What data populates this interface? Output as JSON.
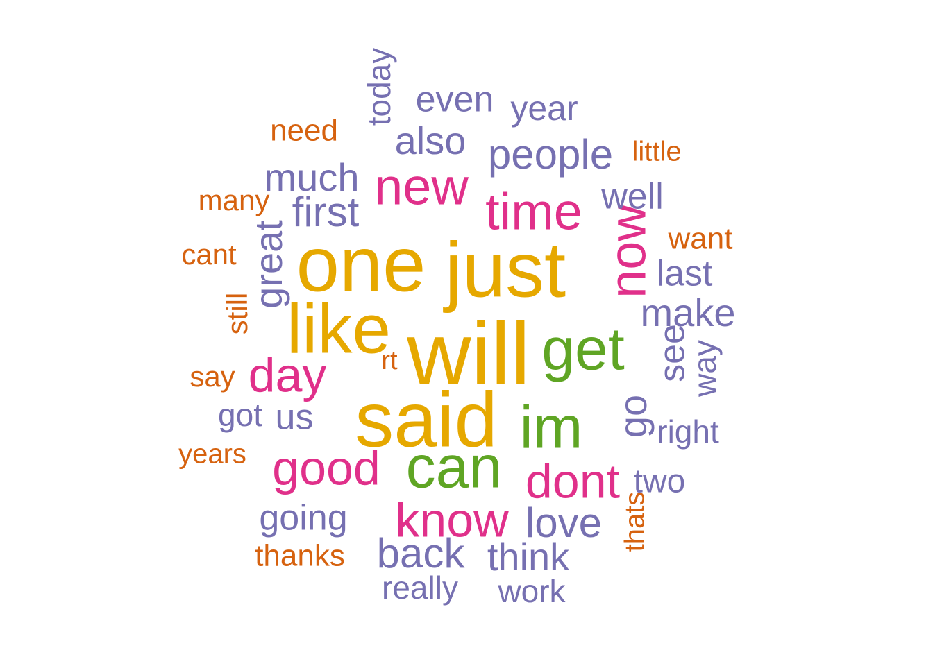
{
  "colors": {
    "gold": "#E6A800",
    "green": "#5FA524",
    "magenta": "#E0308A",
    "purple": "#7670B1",
    "orange": "#D6620F"
  },
  "words": [
    {
      "text": "will",
      "color": "gold",
      "rank": 1
    },
    {
      "text": "said",
      "color": "gold",
      "rank": 2
    },
    {
      "text": "one",
      "color": "gold",
      "rank": 3
    },
    {
      "text": "just",
      "color": "gold",
      "rank": 4
    },
    {
      "text": "like",
      "color": "gold",
      "rank": 5
    },
    {
      "text": "get",
      "color": "green",
      "rank": 6
    },
    {
      "text": "can",
      "color": "green",
      "rank": 7
    },
    {
      "text": "im",
      "color": "green",
      "rank": 8
    },
    {
      "text": "new",
      "color": "magenta",
      "rank": 9
    },
    {
      "text": "time",
      "color": "magenta",
      "rank": 10
    },
    {
      "text": "now",
      "color": "magenta",
      "rank": 11
    },
    {
      "text": "day",
      "color": "magenta",
      "rank": 12
    },
    {
      "text": "good",
      "color": "magenta",
      "rank": 13
    },
    {
      "text": "dont",
      "color": "magenta",
      "rank": 14
    },
    {
      "text": "know",
      "color": "magenta",
      "rank": 15
    },
    {
      "text": "people",
      "color": "purple",
      "rank": 16
    },
    {
      "text": "back",
      "color": "purple",
      "rank": 17
    },
    {
      "text": "love",
      "color": "purple",
      "rank": 18
    },
    {
      "text": "first",
      "color": "purple",
      "rank": 19
    },
    {
      "text": "make",
      "color": "purple",
      "rank": 20
    },
    {
      "text": "go",
      "color": "purple",
      "rank": 21
    },
    {
      "text": "much",
      "color": "purple",
      "rank": 22
    },
    {
      "text": "also",
      "color": "purple",
      "rank": 23
    },
    {
      "text": "think",
      "color": "purple",
      "rank": 24
    },
    {
      "text": "great",
      "color": "purple",
      "rank": 25
    },
    {
      "text": "see",
      "color": "purple",
      "rank": 26
    },
    {
      "text": "last",
      "color": "purple",
      "rank": 27
    },
    {
      "text": "even",
      "color": "purple",
      "rank": 28
    },
    {
      "text": "going",
      "color": "purple",
      "rank": 29
    },
    {
      "text": "well",
      "color": "purple",
      "rank": 30
    },
    {
      "text": "us",
      "color": "purple",
      "rank": 31
    },
    {
      "text": "year",
      "color": "purple",
      "rank": 32
    },
    {
      "text": "today",
      "color": "purple",
      "rank": 33
    },
    {
      "text": "two",
      "color": "purple",
      "rank": 34
    },
    {
      "text": "really",
      "color": "purple",
      "rank": 35
    },
    {
      "text": "work",
      "color": "purple",
      "rank": 36
    },
    {
      "text": "right",
      "color": "purple",
      "rank": 37
    },
    {
      "text": "got",
      "color": "purple",
      "rank": 38
    },
    {
      "text": "way",
      "color": "purple",
      "rank": 39
    },
    {
      "text": "want",
      "color": "orange",
      "rank": 40
    },
    {
      "text": "need",
      "color": "orange",
      "rank": 41
    },
    {
      "text": "thanks",
      "color": "orange",
      "rank": 42
    },
    {
      "text": "many",
      "color": "orange",
      "rank": 43
    },
    {
      "text": "cant",
      "color": "orange",
      "rank": 44
    },
    {
      "text": "still",
      "color": "orange",
      "rank": 45
    },
    {
      "text": "say",
      "color": "orange",
      "rank": 46
    },
    {
      "text": "years",
      "color": "orange",
      "rank": 47
    },
    {
      "text": "thats",
      "color": "orange",
      "rank": 48
    },
    {
      "text": "little",
      "color": "orange",
      "rank": 49
    },
    {
      "text": "rt",
      "color": "orange",
      "rank": 50
    }
  ]
}
